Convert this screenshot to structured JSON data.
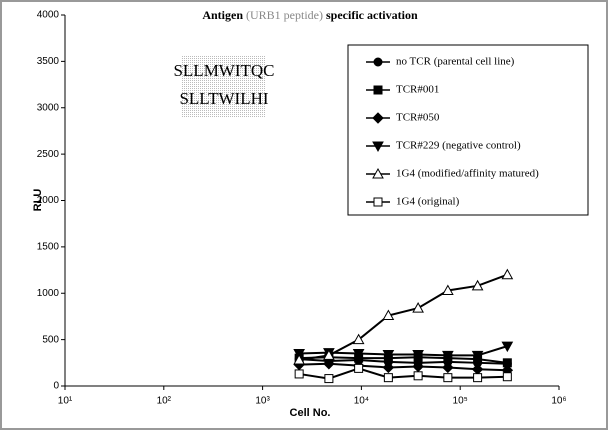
{
  "chart_data": {
    "type": "line",
    "title_parts": [
      "Antigen",
      "(URB1 peptide)",
      "specific activation"
    ],
    "annotation": [
      "SLLMWITQC",
      "SLLTWILHI"
    ],
    "xlabel": "Cell No.",
    "ylabel": "RLU",
    "xscale": "log",
    "xlim": [
      10,
      1000000
    ],
    "xticks": [
      {
        "value": 10,
        "label": "10¹"
      },
      {
        "value": 100,
        "label": "10²"
      },
      {
        "value": 1000,
        "label": "10³"
      },
      {
        "value": 10000,
        "label": "10⁴"
      },
      {
        "value": 100000,
        "label": "10⁵"
      },
      {
        "value": 1000000,
        "label": "10⁶"
      }
    ],
    "ylim": [
      0,
      4000
    ],
    "yticks": [
      0,
      500,
      1000,
      1500,
      2000,
      2500,
      3000,
      3500,
      4000
    ],
    "x": [
      2344,
      4688,
      9375,
      18750,
      37500,
      75000,
      150000,
      300000
    ],
    "series": [
      {
        "name": "no TCR (parental cell line)",
        "color": "#000000",
        "marker": "circle",
        "values": [
          290,
          270,
          280,
          260,
          250,
          260,
          250,
          240
        ]
      },
      {
        "name": "TCR#001",
        "color": "#000000",
        "marker": "square",
        "values": [
          300,
          310,
          300,
          300,
          310,
          300,
          290,
          250
        ]
      },
      {
        "name": "TCR#050",
        "color": "#000000",
        "marker": "diamond",
        "values": [
          230,
          240,
          220,
          200,
          210,
          200,
          180,
          170
        ]
      },
      {
        "name": "TCR#229 (negative control)",
        "color": "#000000",
        "marker": "triangle-down",
        "values": [
          350,
          360,
          350,
          340,
          340,
          330,
          330,
          430
        ]
      },
      {
        "name": "1G4 (modified/affinity matured)",
        "color": "#000000",
        "marker": "triangle-up-open",
        "values": [
          280,
          330,
          500,
          760,
          840,
          1030,
          1080,
          1200
        ]
      },
      {
        "name": "1G4 (original)",
        "color": "#000000",
        "marker": "square-open",
        "values": [
          130,
          80,
          190,
          90,
          110,
          90,
          90,
          100
        ]
      }
    ]
  }
}
